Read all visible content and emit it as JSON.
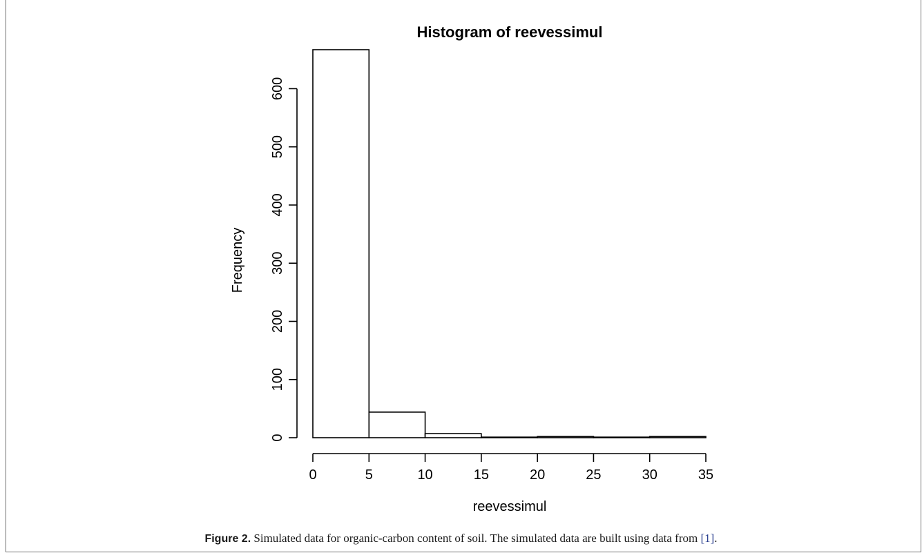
{
  "chart_data": {
    "type": "bar",
    "title": "Histogram of reevessimul",
    "xlabel": "reevessimul",
    "ylabel": "Frequency",
    "bins": [
      {
        "from": 0,
        "to": 5,
        "value": 667
      },
      {
        "from": 5,
        "to": 10,
        "value": 44
      },
      {
        "from": 10,
        "to": 15,
        "value": 7
      },
      {
        "from": 15,
        "to": 20,
        "value": 1
      },
      {
        "from": 20,
        "to": 25,
        "value": 2
      },
      {
        "from": 25,
        "to": 30,
        "value": 1
      },
      {
        "from": 30,
        "to": 35,
        "value": 2
      }
    ],
    "xlim": [
      0,
      35
    ],
    "ylim": [
      0,
      667
    ],
    "x_ticks": [
      "0",
      "5",
      "10",
      "15",
      "20",
      "25",
      "30",
      "35"
    ],
    "y_ticks": [
      "0",
      "100",
      "200",
      "300",
      "400",
      "500",
      "600"
    ],
    "grid": false,
    "colors": {
      "bar_fill": "#ffffff",
      "stroke": "#000000"
    }
  },
  "caption": {
    "label": "Figure 2.",
    "text": " Simulated data for organic-carbon content of soil. The simulated data are built using data from ",
    "ref": "[1]",
    "end": "."
  }
}
